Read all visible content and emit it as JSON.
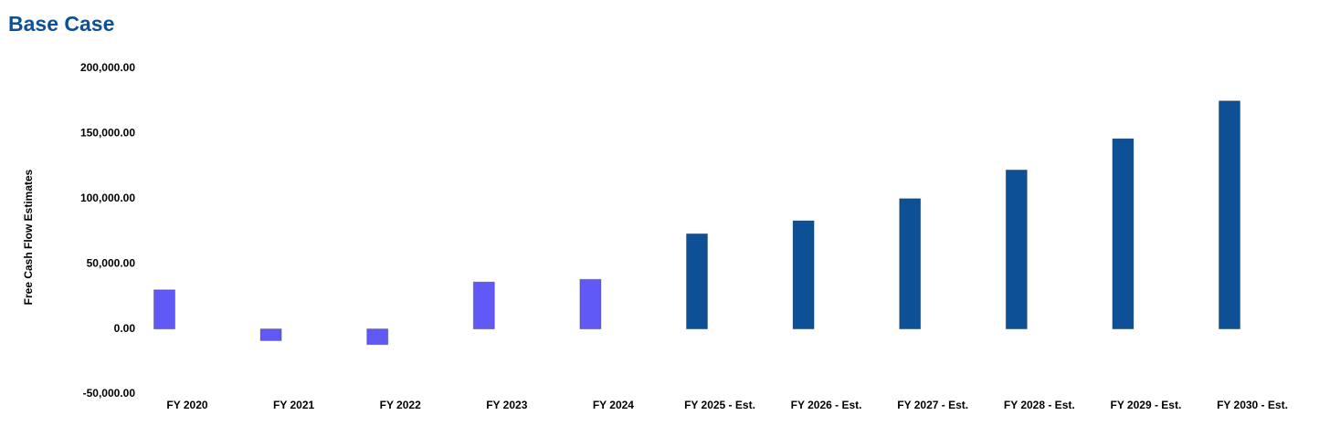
{
  "chart_data": {
    "type": "bar",
    "title": "Base Case",
    "y_label": "Free Cash Flow Estimates",
    "categories": [
      "FY 2020",
      "FY 2021",
      "FY 2022",
      "FY 2023",
      "FY 2024",
      "FY 2025 - Est.",
      "FY 2026 - Est.",
      "FY 2027 - Est.",
      "FY 2028 - Est.",
      "FY 2029 - Est.",
      "FY 2030 - Est."
    ],
    "values": [
      30000,
      -9000,
      -12000,
      36000,
      38000,
      73000,
      83000,
      100000,
      122000,
      146000,
      175000
    ],
    "colors": [
      "#6159f5",
      "#6159f5",
      "#6159f5",
      "#6159f5",
      "#6159f5",
      "#0d5096",
      "#0d5096",
      "#0d5096",
      "#0d5096",
      "#0d5096",
      "#0d5096"
    ],
    "ylim": [
      -50000,
      200000
    ],
    "yticks": [
      {
        "value": -50000,
        "label": "-50,000.00"
      },
      {
        "value": 0,
        "label": "0.00"
      },
      {
        "value": 50000,
        "label": "50,000.00"
      },
      {
        "value": 100000,
        "label": "100,000.00"
      },
      {
        "value": 150000,
        "label": "150,000.00"
      },
      {
        "value": 200000,
        "label": "200,000.00"
      }
    ],
    "grid": false
  }
}
